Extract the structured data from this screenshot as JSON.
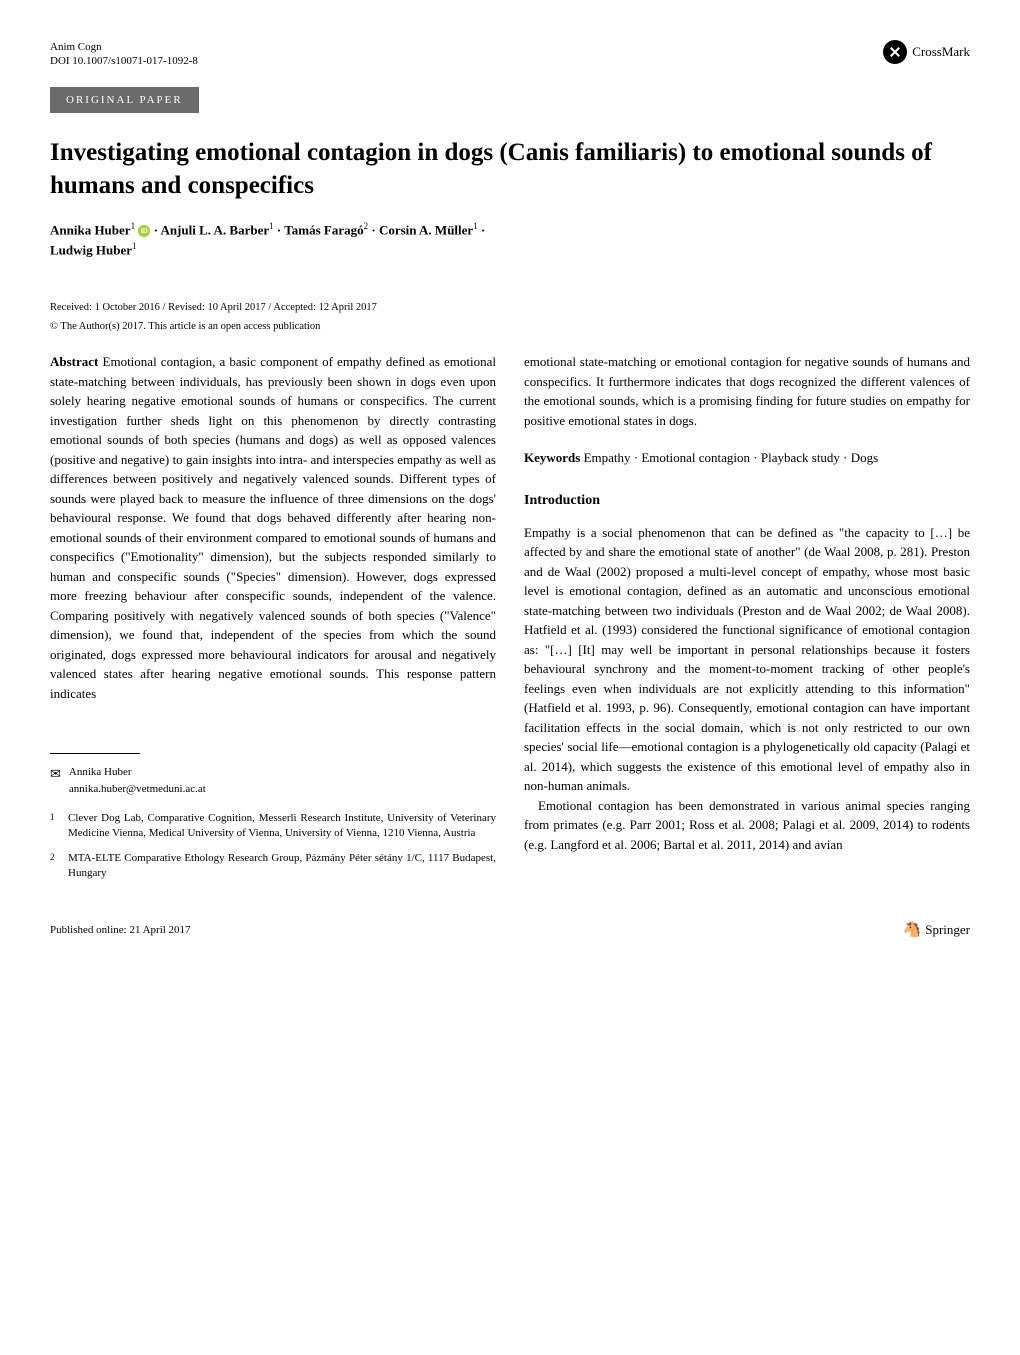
{
  "header": {
    "journal_name": "Anim Cogn",
    "doi": "DOI 10.1007/s10071-017-1092-8",
    "crossmark_label": "CrossMark"
  },
  "paper_type": "ORIGINAL PAPER",
  "title": "Investigating emotional contagion in dogs (Canis familiaris) to emotional sounds of humans and conspecifics",
  "authors": {
    "a1_name": "Annika Huber",
    "a1_sup": "1",
    "a2_name": "Anjuli L. A. Barber",
    "a2_sup": "1",
    "a3_name": "Tamás Faragó",
    "a3_sup": "2",
    "a4_name": "Corsin A. Müller",
    "a4_sup": "1",
    "a5_name": "Ludwig Huber",
    "a5_sup": "1",
    "separator": " · "
  },
  "dates": "Received: 1 October 2016 / Revised: 10 April 2017 / Accepted: 12 April 2017",
  "copyright": "© The Author(s) 2017. This article is an open access publication",
  "abstract": {
    "label": "Abstract",
    "left_text": " Emotional contagion, a basic component of empathy defined as emotional state-matching between individuals, has previously been shown in dogs even upon solely hearing negative emotional sounds of humans or conspecifics. The current investigation further sheds light on this phenomenon by directly contrasting emotional sounds of both species (humans and dogs) as well as opposed valences (positive and negative) to gain insights into intra- and interspecies empathy as well as differences between positively and negatively valenced sounds. Different types of sounds were played back to measure the influence of three dimensions on the dogs' behavioural response. We found that dogs behaved differently after hearing non-emotional sounds of their environment compared to emotional sounds of humans and conspecifics (\"Emotionality\" dimension), but the subjects responded similarly to human and conspecific sounds (\"Species\" dimension). However, dogs expressed more freezing behaviour after conspecific sounds, independent of the valence. Comparing positively with negatively valenced sounds of both species (\"Valence\" dimension), we found that, independent of the species from which the sound originated, dogs expressed more behavioural indicators for arousal and negatively valenced states after hearing negative emotional sounds. This response pattern indicates",
    "right_text": "emotional state-matching or emotional contagion for negative sounds of humans and conspecifics. It furthermore indicates that dogs recognized the different valences of the emotional sounds, which is a promising finding for future studies on empathy for positive emotional states in dogs."
  },
  "keywords": {
    "label": "Keywords",
    "text": " Empathy · Emotional contagion · Playback study · Dogs"
  },
  "introduction": {
    "heading": "Introduction",
    "p1": "Empathy is a social phenomenon that can be defined as \"the capacity to […] be affected by and share the emotional state of another\" (de Waal 2008, p. 281). Preston and de Waal (2002) proposed a multi-level concept of empathy, whose most basic level is emotional contagion, defined as an automatic and unconscious emotional state-matching between two individuals (Preston and de Waal 2002; de Waal 2008). Hatfield et al. (1993) considered the functional significance of emotional contagion as: \"[…] [It] may well be important in personal relationships because it fosters behavioural synchrony and the moment-to-moment tracking of other people's feelings even when individuals are not explicitly attending to this information\" (Hatfield et al. 1993, p. 96). Consequently, emotional contagion can have important facilitation effects in the social domain, which is not only restricted to our own species' social life—emotional contagion is a phylogenetically old capacity (Palagi et al. 2014), which suggests the existence of this emotional level of empathy also in non-human animals.",
    "p2": "Emotional contagion has been demonstrated in various animal species ranging from primates (e.g. Parr 2001; Ross et al. 2008; Palagi et al. 2009, 2014) to rodents (e.g. Langford et al. 2006; Bartal et al. 2011, 2014) and avian"
  },
  "correspondence": {
    "name": "Annika Huber",
    "email": "annika.huber@vetmeduni.ac.at"
  },
  "affiliations": {
    "aff1_num": "1",
    "aff1_text": "Clever Dog Lab, Comparative Cognition, Messerli Research Institute, University of Veterinary Medicine Vienna, Medical University of Vienna, University of Vienna, 1210 Vienna, Austria",
    "aff2_num": "2",
    "aff2_text": "MTA-ELTE Comparative Ethology Research Group, Pázmány Péter sétány 1/C, 1117 Budapest, Hungary"
  },
  "footer": {
    "published": "Published online: 21 April 2017",
    "publisher": "Springer"
  }
}
